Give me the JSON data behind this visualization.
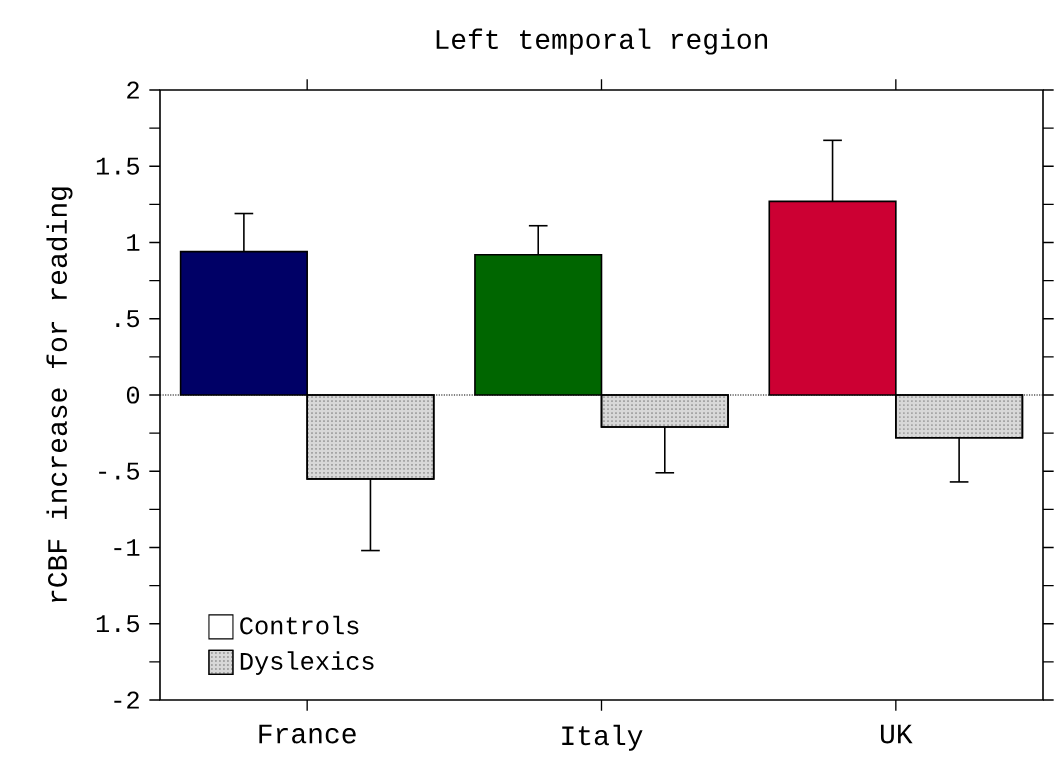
{
  "chart_data": {
    "type": "bar",
    "title": "Left temporal region",
    "ylabel": "rCBF increase for reading",
    "categories": [
      "France",
      "Italy",
      "UK"
    ],
    "series": [
      {
        "name": "Controls",
        "colors": [
          "#000066",
          "#006600",
          "#cc0033"
        ],
        "values": [
          0.94,
          0.92,
          1.27
        ],
        "errors": [
          [
            0.94,
            1.19
          ],
          [
            0.92,
            1.11
          ],
          [
            1.27,
            1.67
          ]
        ]
      },
      {
        "name": "Dyslexics",
        "color": "#d8d8d8",
        "values": [
          -0.55,
          -0.21,
          -0.28
        ],
        "errors": [
          [
            -1.02,
            -0.55
          ],
          [
            -0.51,
            -0.21
          ],
          [
            -0.57,
            -0.28
          ]
        ]
      }
    ],
    "ylim": [
      -2,
      2
    ],
    "yticks": [
      -2,
      {
        "value": -1.5,
        "label": "1.5"
      },
      -1,
      {
        "value": -0.5,
        "label": "-.5"
      },
      0,
      {
        "value": 0.5,
        "label": ".5"
      },
      1,
      1.5,
      2
    ],
    "ref_lines": [
      {
        "axis": "y",
        "value": 0,
        "line_style": "dotted"
      }
    ],
    "legend": "bottom left",
    "grid": false
  }
}
